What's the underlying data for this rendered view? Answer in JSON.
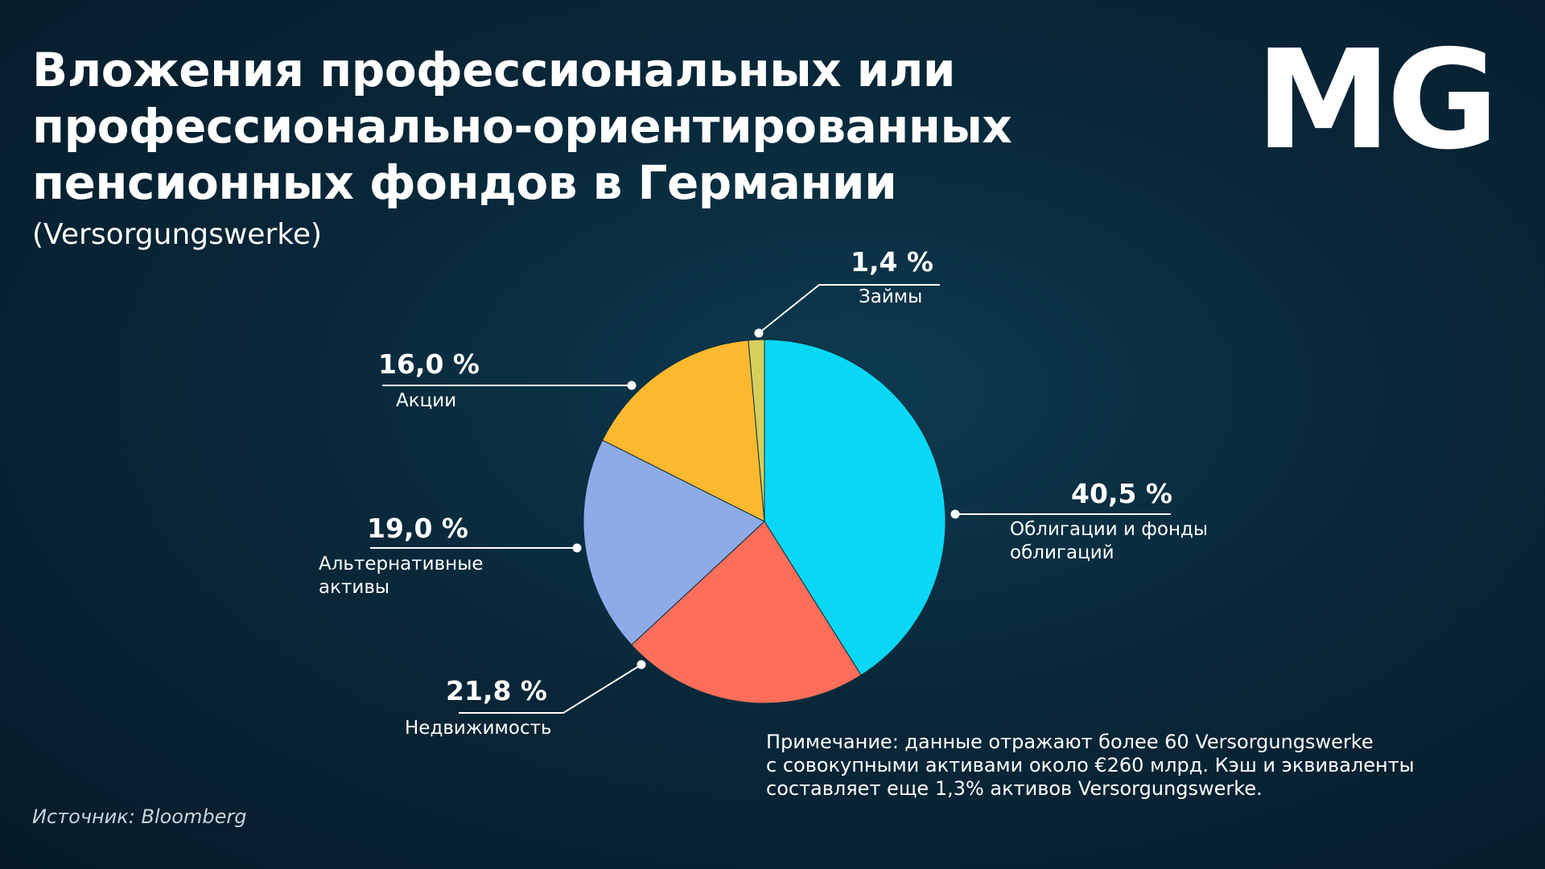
{
  "title_lines": [
    "Вложения профессиональных или",
    "профессионально-ориентированных",
    "пенсионных фондов в Германии"
  ],
  "subtitle": "(Versorgungswerke)",
  "logo": "MG",
  "note_lines": [
    "Примечание: данные отражают более 60 Versorgungswerke",
    "с совокупными активами около €260 млрд. Кэш и эквиваленты",
    "составляет еще 1,3% активов Versorgungswerke."
  ],
  "source": "Источник: Bloomberg",
  "chart_data": {
    "type": "pie",
    "start": "12 o'clock, clockwise",
    "slices": [
      {
        "label": "Облигации и фонды облигаций",
        "label_lines": [
          "Облигации и фонды",
          "облигаций"
        ],
        "value": 40.5,
        "value_text": "40,5 %",
        "color": "#08d8f5"
      },
      {
        "label": "Недвижимость",
        "label_lines": [
          "Недвижимость"
        ],
        "value": 21.8,
        "value_text": "21,8 %",
        "color": "#ff6e5a"
      },
      {
        "label": "Альтернативные активы",
        "label_lines": [
          "Альтернативные",
          "активы"
        ],
        "value": 19.0,
        "value_text": "19,0 %",
        "color": "#8eabe8"
      },
      {
        "label": "Акции",
        "label_lines": [
          "Акции"
        ],
        "value": 16.0,
        "value_text": "16,0 %",
        "color": "#fdb92f"
      },
      {
        "label": "Займы",
        "label_lines": [
          "Займы"
        ],
        "value": 1.4,
        "value_text": "1,4 %",
        "color": "#d6cf5c"
      }
    ]
  }
}
